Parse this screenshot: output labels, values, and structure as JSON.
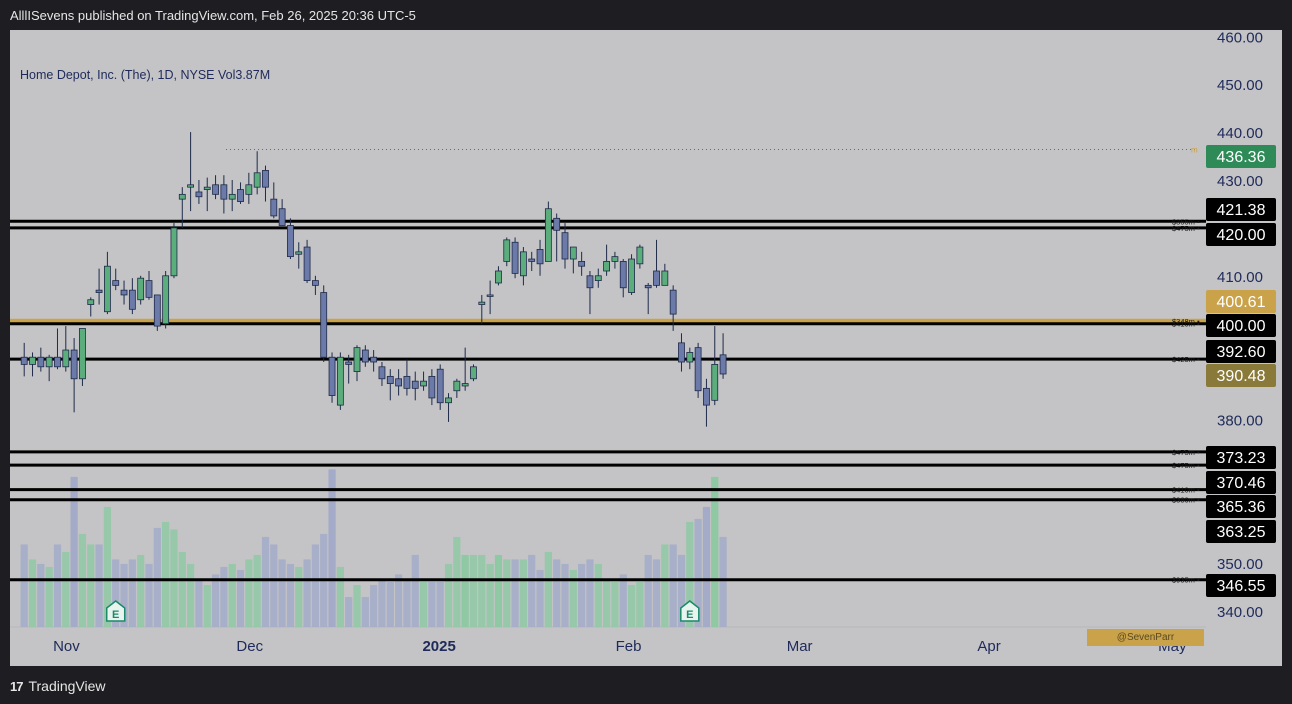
{
  "publish_line": "AlllISevens published on TradingView.com, Feb 26, 2025 20:36 UTC-5",
  "symbol_line": "Home Depot, Inc. (The), 1D, NYSE  Vol3.87M",
  "watermark": "@SevenParr",
  "footer": {
    "logo": "17",
    "brand": "TradingView"
  },
  "colors": {
    "up": "#5cad7c",
    "down": "#6b7aa8",
    "gold": "#c9a24a",
    "green_tag": "#2e8b57"
  },
  "chart_data": {
    "type": "candlestick",
    "title": "Home Depot, Inc. (The), 1D, NYSE",
    "volume_label": "Vol3.87M",
    "ylim": [
      336.5,
      461
    ],
    "y_ticks": [
      "460.00",
      "450.00",
      "440.00",
      "430.00",
      "410.00",
      "380.00",
      "350.00",
      "340.00"
    ],
    "x_ticks": [
      {
        "label": "Nov",
        "date": "2024-11-01",
        "bold": false
      },
      {
        "label": "Dec",
        "date": "2024-12-01",
        "bold": false
      },
      {
        "label": "2025",
        "date": "2025-01-01",
        "bold": true
      },
      {
        "label": "Feb",
        "date": "2025-02-01",
        "bold": false
      },
      {
        "label": "Mar",
        "date": "2025-03-01",
        "bold": false
      },
      {
        "label": "Apr",
        "date": "2025-04-01",
        "bold": false
      },
      {
        "label": "May",
        "date": "2025-05-01",
        "bold": false
      }
    ],
    "candles": [
      {
        "date": "2024-10-28",
        "o": 393.0,
        "h": 396.0,
        "l": 389.0,
        "c": 391.5
      },
      {
        "date": "2024-10-29",
        "o": 391.5,
        "h": 394.0,
        "l": 389.0,
        "c": 393.0
      },
      {
        "date": "2024-10-30",
        "o": 393.0,
        "h": 395.0,
        "l": 390.0,
        "c": 391.0
      },
      {
        "date": "2024-10-31",
        "o": 391.0,
        "h": 393.5,
        "l": 388.0,
        "c": 393.0
      },
      {
        "date": "2024-11-01",
        "o": 393.0,
        "h": 399.0,
        "l": 390.5,
        "c": 391.0
      },
      {
        "date": "2024-11-04",
        "o": 391.0,
        "h": 399.5,
        "l": 390.0,
        "c": 394.5
      },
      {
        "date": "2024-11-05",
        "o": 394.5,
        "h": 397.0,
        "l": 381.5,
        "c": 388.5
      },
      {
        "date": "2024-11-06",
        "o": 388.5,
        "h": 399.0,
        "l": 387.0,
        "c": 399.0
      },
      {
        "date": "2024-11-07",
        "o": 404.0,
        "h": 405.5,
        "l": 401.5,
        "c": 405.0
      },
      {
        "date": "2024-11-08",
        "o": 407.0,
        "h": 411.5,
        "l": 404.0,
        "c": 406.5
      },
      {
        "date": "2024-11-11",
        "o": 402.5,
        "h": 415.0,
        "l": 402.0,
        "c": 412.0
      },
      {
        "date": "2024-11-12",
        "o": 409.0,
        "h": 411.5,
        "l": 407.0,
        "c": 408.0
      },
      {
        "date": "2024-11-13",
        "o": 407.0,
        "h": 409.0,
        "l": 404.0,
        "c": 406.0
      },
      {
        "date": "2024-11-14",
        "o": 407.0,
        "h": 409.5,
        "l": 402.0,
        "c": 403.0
      },
      {
        "date": "2024-11-15",
        "o": 405.0,
        "h": 410.0,
        "l": 404.0,
        "c": 409.5
      },
      {
        "date": "2024-11-18",
        "o": 409.0,
        "h": 411.0,
        "l": 405.0,
        "c": 405.5
      },
      {
        "date": "2024-11-19",
        "o": 406.0,
        "h": 406.0,
        "l": 398.5,
        "c": 399.5
      },
      {
        "date": "2024-11-20",
        "o": 400.0,
        "h": 411.0,
        "l": 399.0,
        "c": 410.0
      },
      {
        "date": "2024-11-21",
        "o": 410.0,
        "h": 421.0,
        "l": 409.5,
        "c": 420.0
      },
      {
        "date": "2024-11-22",
        "o": 426.0,
        "h": 428.5,
        "l": 420.0,
        "c": 427.0
      },
      {
        "date": "2024-11-25",
        "o": 428.5,
        "h": 440.0,
        "l": 423.5,
        "c": 429.0
      },
      {
        "date": "2024-11-26",
        "o": 427.5,
        "h": 430.0,
        "l": 425.0,
        "c": 426.5
      },
      {
        "date": "2024-11-27",
        "o": 428.0,
        "h": 430.5,
        "l": 423.5,
        "c": 428.5
      },
      {
        "date": "2024-11-29",
        "o": 429.0,
        "h": 431.0,
        "l": 426.0,
        "c": 427.0
      },
      {
        "date": "2024-12-02",
        "o": 429.0,
        "h": 431.0,
        "l": 423.0,
        "c": 426.0
      },
      {
        "date": "2024-12-03",
        "o": 426.0,
        "h": 430.0,
        "l": 423.5,
        "c": 427.0
      },
      {
        "date": "2024-12-04",
        "o": 428.0,
        "h": 429.5,
        "l": 425.0,
        "c": 425.5
      },
      {
        "date": "2024-12-05",
        "o": 427.0,
        "h": 431.5,
        "l": 425.0,
        "c": 429.0
      },
      {
        "date": "2024-12-06",
        "o": 428.5,
        "h": 436.0,
        "l": 427.0,
        "c": 431.5
      },
      {
        "date": "2024-12-09",
        "o": 432.0,
        "h": 433.0,
        "l": 425.5,
        "c": 428.5
      },
      {
        "date": "2024-12-10",
        "o": 426.0,
        "h": 429.5,
        "l": 422.0,
        "c": 422.5
      },
      {
        "date": "2024-12-11",
        "o": 424.0,
        "h": 426.0,
        "l": 421.0,
        "c": 420.5
      },
      {
        "date": "2024-12-12",
        "o": 420.5,
        "h": 422.0,
        "l": 413.5,
        "c": 414.0
      },
      {
        "date": "2024-12-13",
        "o": 414.5,
        "h": 417.0,
        "l": 411.5,
        "c": 415.0
      },
      {
        "date": "2024-12-16",
        "o": 416.0,
        "h": 417.5,
        "l": 408.5,
        "c": 409.0
      },
      {
        "date": "2024-12-17",
        "o": 409.0,
        "h": 410.0,
        "l": 406.0,
        "c": 408.0
      },
      {
        "date": "2024-12-18",
        "o": 406.5,
        "h": 408.0,
        "l": 392.0,
        "c": 393.0
      },
      {
        "date": "2024-12-19",
        "o": 393.0,
        "h": 394.0,
        "l": 383.5,
        "c": 385.0
      },
      {
        "date": "2024-12-20",
        "o": 383.0,
        "h": 394.0,
        "l": 382.0,
        "c": 393.0
      },
      {
        "date": "2024-12-23",
        "o": 392.0,
        "h": 393.5,
        "l": 387.5,
        "c": 391.5
      },
      {
        "date": "2024-12-24",
        "o": 390.0,
        "h": 395.5,
        "l": 388.0,
        "c": 395.0
      },
      {
        "date": "2024-12-26",
        "o": 394.5,
        "h": 395.5,
        "l": 391.0,
        "c": 392.0
      },
      {
        "date": "2024-12-27",
        "o": 393.0,
        "h": 394.5,
        "l": 390.0,
        "c": 392.0
      },
      {
        "date": "2024-12-30",
        "o": 391.0,
        "h": 392.0,
        "l": 387.0,
        "c": 388.5
      },
      {
        "date": "2024-12-31",
        "o": 389.0,
        "h": 390.5,
        "l": 384.0,
        "c": 387.5
      },
      {
        "date": "2025-01-02",
        "o": 388.5,
        "h": 390.5,
        "l": 385.0,
        "c": 387.0
      },
      {
        "date": "2025-01-03",
        "o": 389.0,
        "h": 392.5,
        "l": 385.0,
        "c": 386.5
      },
      {
        "date": "2025-01-06",
        "o": 388.0,
        "h": 390.0,
        "l": 384.0,
        "c": 386.5
      },
      {
        "date": "2025-01-07",
        "o": 387.0,
        "h": 390.0,
        "l": 386.0,
        "c": 388.0
      },
      {
        "date": "2025-01-08",
        "o": 389.0,
        "h": 390.5,
        "l": 383.0,
        "c": 384.5
      },
      {
        "date": "2025-01-10",
        "o": 390.5,
        "h": 391.5,
        "l": 382.0,
        "c": 383.5
      },
      {
        "date": "2025-01-13",
        "o": 383.5,
        "h": 385.5,
        "l": 379.5,
        "c": 384.5
      },
      {
        "date": "2025-01-14",
        "o": 386.0,
        "h": 388.5,
        "l": 384.5,
        "c": 388.0
      },
      {
        "date": "2025-01-15",
        "o": 387.0,
        "h": 395.0,
        "l": 386.0,
        "c": 387.5
      },
      {
        "date": "2025-01-16",
        "o": 388.5,
        "h": 391.5,
        "l": 388.0,
        "c": 391.0
      },
      {
        "date": "2025-01-17",
        "o": 404.0,
        "h": 406.0,
        "l": 400.0,
        "c": 404.5
      },
      {
        "date": "2025-01-21",
        "o": 406.0,
        "h": 409.0,
        "l": 402.0,
        "c": 406.0
      },
      {
        "date": "2025-01-22",
        "o": 408.5,
        "h": 412.0,
        "l": 408.0,
        "c": 411.0
      },
      {
        "date": "2025-01-23",
        "o": 413.0,
        "h": 418.0,
        "l": 412.0,
        "c": 417.5
      },
      {
        "date": "2025-01-24",
        "o": 417.0,
        "h": 418.0,
        "l": 409.5,
        "c": 410.5
      },
      {
        "date": "2025-01-27",
        "o": 410.0,
        "h": 416.0,
        "l": 408.0,
        "c": 415.0
      },
      {
        "date": "2025-01-28",
        "o": 413.5,
        "h": 415.0,
        "l": 411.0,
        "c": 413.0
      },
      {
        "date": "2025-01-29",
        "o": 415.5,
        "h": 417.5,
        "l": 410.0,
        "c": 412.5
      },
      {
        "date": "2025-01-30",
        "o": 413.0,
        "h": 425.5,
        "l": 413.0,
        "c": 424.0
      },
      {
        "date": "2025-01-31",
        "o": 422.0,
        "h": 423.0,
        "l": 413.0,
        "c": 419.5
      },
      {
        "date": "2025-02-03",
        "o": 419.0,
        "h": 421.0,
        "l": 411.5,
        "c": 413.5
      },
      {
        "date": "2025-02-04",
        "o": 413.5,
        "h": 416.0,
        "l": 410.5,
        "c": 416.0
      },
      {
        "date": "2025-02-05",
        "o": 413.0,
        "h": 415.0,
        "l": 410.0,
        "c": 412.0
      },
      {
        "date": "2025-02-06",
        "o": 410.0,
        "h": 411.0,
        "l": 402.0,
        "c": 407.5
      },
      {
        "date": "2025-02-07",
        "o": 409.0,
        "h": 411.5,
        "l": 407.5,
        "c": 410.0
      },
      {
        "date": "2025-02-10",
        "o": 411.0,
        "h": 416.5,
        "l": 410.0,
        "c": 413.0
      },
      {
        "date": "2025-02-11",
        "o": 413.0,
        "h": 415.0,
        "l": 411.5,
        "c": 414.0
      },
      {
        "date": "2025-02-12",
        "o": 413.0,
        "h": 413.5,
        "l": 405.5,
        "c": 407.5
      },
      {
        "date": "2025-02-13",
        "o": 406.5,
        "h": 414.5,
        "l": 406.0,
        "c": 413.5
      },
      {
        "date": "2025-02-14",
        "o": 412.5,
        "h": 416.5,
        "l": 411.5,
        "c": 416.0
      },
      {
        "date": "2025-02-18",
        "o": 408.0,
        "h": 408.5,
        "l": 402.0,
        "c": 407.5
      },
      {
        "date": "2025-02-19",
        "o": 411.0,
        "h": 417.5,
        "l": 407.5,
        "c": 408.0
      },
      {
        "date": "2025-02-20",
        "o": 408.0,
        "h": 412.5,
        "l": 408.0,
        "c": 411.0
      },
      {
        "date": "2025-02-21",
        "o": 407.0,
        "h": 408.0,
        "l": 398.5,
        "c": 402.0
      },
      {
        "date": "2025-02-24",
        "o": 396.0,
        "h": 398.0,
        "l": 390.0,
        "c": 392.0
      },
      {
        "date": "2025-02-25",
        "o": 392.0,
        "h": 395.0,
        "l": 390.5,
        "c": 394.0
      },
      {
        "date": "2025-02-26",
        "o": 395.0,
        "h": 396.0,
        "l": 384.5,
        "c": 386.0
      },
      {
        "date": "2025-02-27",
        "o": 386.5,
        "h": 388.5,
        "l": 378.5,
        "c": 383.0
      },
      {
        "date": "2025-02-28",
        "o": 384.0,
        "h": 399.5,
        "l": 383.0,
        "c": 391.5
      },
      {
        "date": "2025-03-03",
        "o": 393.5,
        "h": 398.0,
        "l": 388.5,
        "c": 389.5
      }
    ],
    "volume_relative": [
      0.55,
      0.45,
      0.42,
      0.4,
      0.55,
      0.5,
      1.0,
      0.62,
      0.55,
      0.55,
      0.8,
      0.45,
      0.42,
      0.45,
      0.48,
      0.42,
      0.66,
      0.7,
      0.65,
      0.5,
      0.42,
      0.32,
      0.28,
      0.35,
      0.4,
      0.42,
      0.38,
      0.45,
      0.48,
      0.6,
      0.55,
      0.45,
      0.42,
      0.4,
      0.45,
      0.55,
      0.62,
      1.05,
      0.4,
      0.2,
      0.28,
      0.2,
      0.28,
      0.32,
      0.3,
      0.35,
      0.32,
      0.48,
      0.3,
      0.3,
      0.3,
      0.42,
      0.6,
      0.48,
      0.48,
      0.48,
      0.42,
      0.48,
      0.45,
      0.45,
      0.45,
      0.48,
      0.38,
      0.5,
      0.45,
      0.42,
      0.38,
      0.42,
      0.45,
      0.42,
      0.32,
      0.3,
      0.35,
      0.28,
      0.3,
      0.48,
      0.45,
      0.55,
      0.55,
      0.48,
      0.7,
      0.72,
      0.8,
      1.0,
      0.6
    ],
    "volume_highlight": [
      6,
      37,
      53,
      57,
      82,
      83
    ],
    "earnings_markers": [
      "2024-11-12",
      "2025-02-25"
    ],
    "dotted_level": 436.36,
    "hlines": [
      {
        "price": 421.38,
        "label": "$355m",
        "tag": "421.38",
        "color": "#000000",
        "tagBg": "#000000"
      },
      {
        "price": 420.0,
        "label": "$475m",
        "tag": "420.00",
        "color": "#000000",
        "tagBg": "#000000"
      },
      {
        "price": 400.61,
        "label": "$348m",
        "tag": "400.61",
        "color": "#c9a24a",
        "tagBg": "#c9a24a"
      },
      {
        "price": 400.0,
        "label": "$410m",
        "tag": "400.00",
        "color": "#000000",
        "tagBg": "#000000"
      },
      {
        "price": 392.6,
        "label": "$425m",
        "tag": "392.60",
        "color": "#000000",
        "tagBg": "#000000"
      },
      {
        "price": 373.23,
        "label": "$475m",
        "tag": "373.23",
        "color": "#000000",
        "tagBg": "#000000"
      },
      {
        "price": 370.46,
        "label": "$475m",
        "tag": "370.46",
        "color": "#000000",
        "tagBg": "#000000"
      },
      {
        "price": 365.36,
        "label": "$410m",
        "tag": "365.36",
        "color": "#000000",
        "tagBg": "#000000"
      },
      {
        "price": 363.25,
        "label": "$380m",
        "tag": "363.25",
        "color": "#000000",
        "tagBg": "#000000"
      },
      {
        "price": 346.55,
        "label": "$935m",
        "tag": "346.55",
        "color": "#000000",
        "tagBg": "#000000"
      }
    ],
    "extra_price_tags": [
      {
        "price": 436.36,
        "tag": "436.36",
        "tagBg": "#2e8b57"
      },
      {
        "price": 390.48,
        "tag": "390.48",
        "tagBg": "#8a7a3a"
      }
    ],
    "grid": false,
    "legend": "none"
  }
}
